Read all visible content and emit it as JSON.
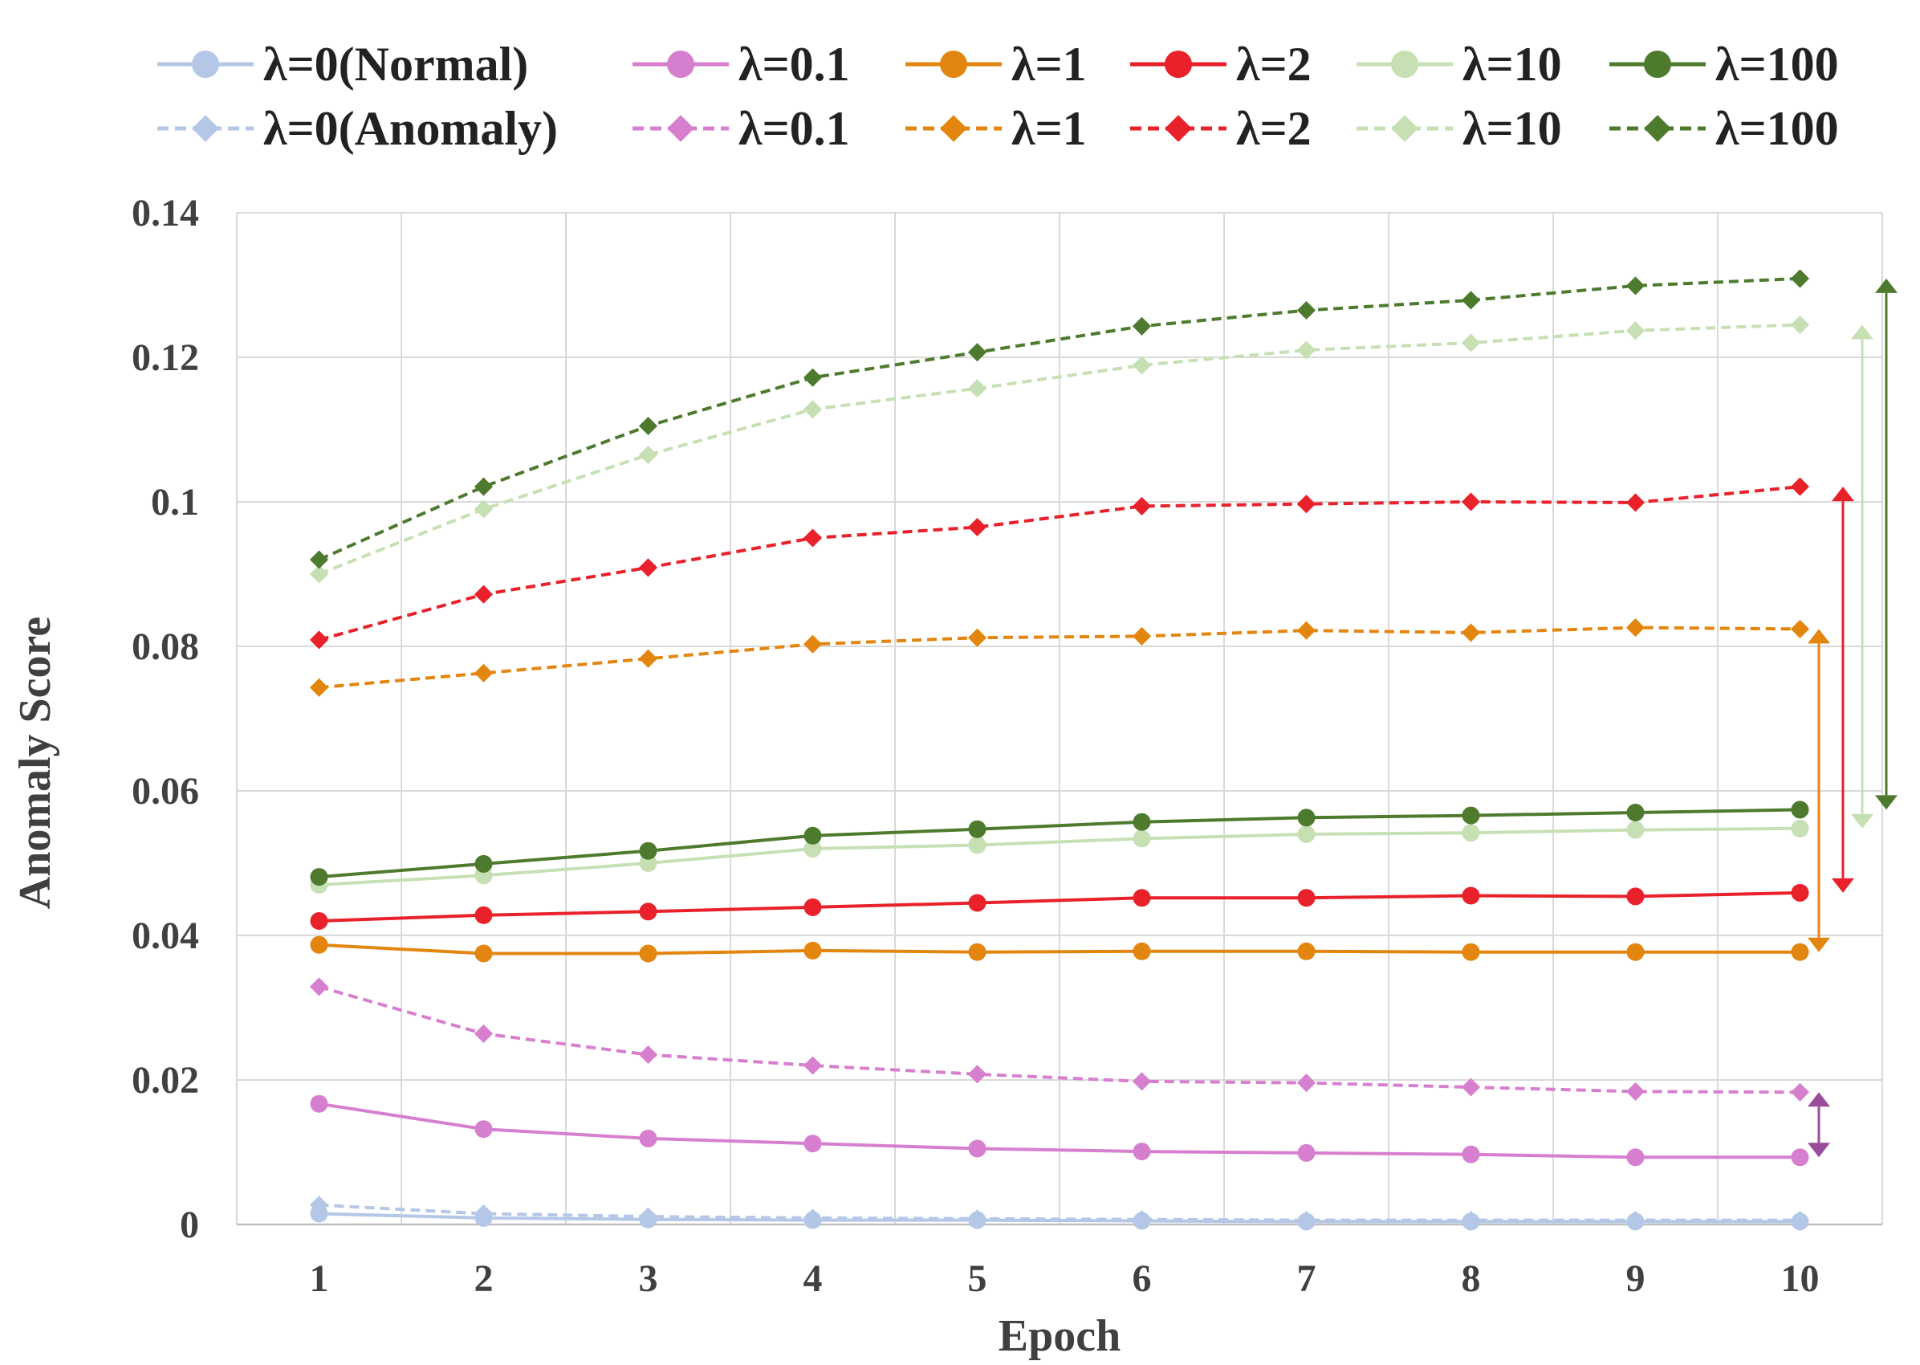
{
  "chart_data": {
    "type": "line",
    "title": "",
    "xlabel": "Epoch",
    "ylabel": "Anomaly Score",
    "x": [
      1,
      2,
      3,
      4,
      5,
      6,
      7,
      8,
      9,
      10
    ],
    "xlim": [
      0.5,
      10.5
    ],
    "ylim": [
      0,
      0.14
    ],
    "yticks": [
      0,
      0.02,
      0.04,
      0.06,
      0.08,
      0.1,
      0.12,
      0.14
    ],
    "ytick_labels": [
      "0",
      "0.02",
      "0.04",
      "0.06",
      "0.08",
      "0.1",
      "0.12",
      "0.14"
    ],
    "xtick_labels": [
      "1",
      "2",
      "3",
      "4",
      "5",
      "6",
      "7",
      "8",
      "9",
      "10"
    ],
    "grid": true,
    "legend_position": "top",
    "series": [
      {
        "name": "λ=0(Normal)",
        "style": "solid",
        "marker": "circle",
        "color": "#b4c7e7",
        "values": [
          0.0015,
          0.0009,
          0.0007,
          0.0006,
          0.0006,
          0.0005,
          0.0004,
          0.0004,
          0.0004,
          0.0004
        ]
      },
      {
        "name": "λ=0.1",
        "style": "solid",
        "marker": "circle",
        "color": "#d77fcf",
        "values": [
          0.0167,
          0.0132,
          0.0119,
          0.0112,
          0.0105,
          0.0101,
          0.0099,
          0.0097,
          0.0093,
          0.0093
        ]
      },
      {
        "name": "λ=1",
        "style": "solid",
        "marker": "circle",
        "color": "#e3860f",
        "values": [
          0.0387,
          0.0375,
          0.0375,
          0.0379,
          0.0377,
          0.0378,
          0.0378,
          0.0377,
          0.0377,
          0.0377
        ]
      },
      {
        "name": "λ=2",
        "style": "solid",
        "marker": "circle",
        "color": "#e8212b",
        "values": [
          0.042,
          0.0428,
          0.0433,
          0.0439,
          0.0445,
          0.0452,
          0.0452,
          0.0455,
          0.0454,
          0.0459
        ]
      },
      {
        "name": "λ=10",
        "style": "solid",
        "marker": "circle",
        "color": "#c6e0b4",
        "values": [
          0.047,
          0.0483,
          0.05,
          0.052,
          0.0525,
          0.0534,
          0.054,
          0.0542,
          0.0546,
          0.0548
        ]
      },
      {
        "name": "λ=100",
        "style": "solid",
        "marker": "circle",
        "color": "#4e7a2e",
        "values": [
          0.0481,
          0.0499,
          0.0517,
          0.0538,
          0.0547,
          0.0557,
          0.0563,
          0.0566,
          0.057,
          0.0574
        ]
      },
      {
        "name": "λ=0(Anomaly)",
        "style": "dashed",
        "marker": "diamond",
        "color": "#b4c7e7",
        "values": [
          0.0027,
          0.0015,
          0.0011,
          0.0009,
          0.0008,
          0.0007,
          0.0006,
          0.0006,
          0.0006,
          0.0006
        ]
      },
      {
        "name": "λ=0.1",
        "style": "dashed",
        "marker": "diamond",
        "color": "#d77fcf",
        "values": [
          0.0329,
          0.0264,
          0.0235,
          0.022,
          0.0208,
          0.0198,
          0.0196,
          0.019,
          0.0184,
          0.0183
        ]
      },
      {
        "name": "λ=1",
        "style": "dashed",
        "marker": "diamond",
        "color": "#e3860f",
        "values": [
          0.0743,
          0.0763,
          0.0783,
          0.0803,
          0.0812,
          0.0814,
          0.0822,
          0.0819,
          0.0826,
          0.0824
        ]
      },
      {
        "name": "λ=2",
        "style": "dashed",
        "marker": "diamond",
        "color": "#e8212b",
        "values": [
          0.0809,
          0.0872,
          0.0909,
          0.095,
          0.0965,
          0.0994,
          0.0997,
          0.1,
          0.0999,
          0.1021
        ]
      },
      {
        "name": "λ=10",
        "style": "dashed",
        "marker": "diamond",
        "color": "#c6e0b4",
        "values": [
          0.09,
          0.099,
          0.1065,
          0.1128,
          0.1157,
          0.1189,
          0.121,
          0.122,
          0.1237,
          0.1245
        ]
      },
      {
        "name": "λ=100",
        "style": "dashed",
        "marker": "diamond",
        "color": "#4e7a2e",
        "values": [
          0.092,
          0.1021,
          0.1105,
          0.1172,
          0.1207,
          0.1243,
          0.1265,
          0.1279,
          0.1299,
          0.1309
        ]
      }
    ],
    "annotations": [
      {
        "kind": "double-arrow",
        "color": "#9a4d9a",
        "from": 0.0183,
        "to": 0.0093
      },
      {
        "kind": "double-arrow",
        "color": "#e3860f",
        "from": 0.0824,
        "to": 0.0377
      },
      {
        "kind": "double-arrow",
        "color": "#e8212b",
        "from": 0.1021,
        "to": 0.0459
      },
      {
        "kind": "double-arrow",
        "color": "#c6e0b4",
        "from": 0.1245,
        "to": 0.0548
      },
      {
        "kind": "double-arrow",
        "color": "#4e7a2e",
        "from": 0.1309,
        "to": 0.0574
      }
    ]
  }
}
